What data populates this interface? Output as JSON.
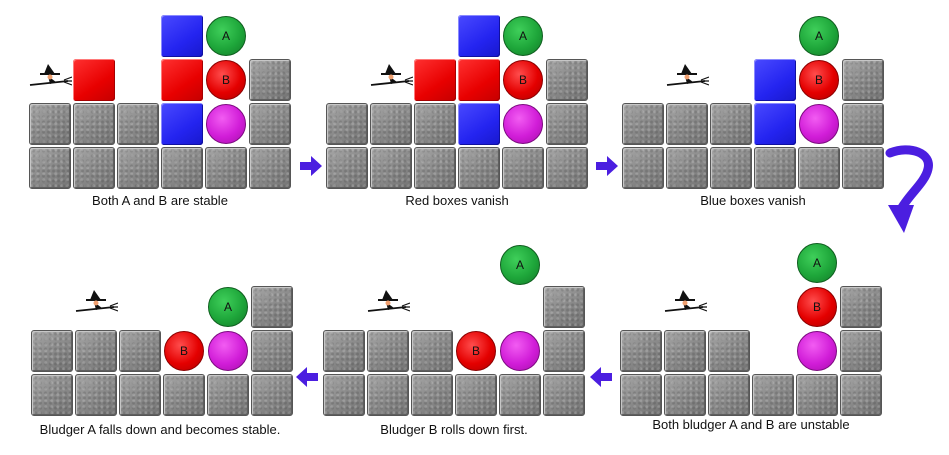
{
  "ball_labels": {
    "a": "A",
    "b": "B"
  },
  "captions": {
    "panel1": "Both A and B are stable",
    "panel2": "Red boxes vanish",
    "panel3": "Blue boxes vanish",
    "panel4": "Bludger A falls down and becomes stable.",
    "panel5": "Bludger B rolls down first.",
    "panel6": "Both bludger A and B are unstable"
  },
  "colors": {
    "stone": "#8d8d8d",
    "red_box": "#e80000",
    "blue_box": "#2424f0",
    "bludger_green": "#1ea63a",
    "bludger_red": "#e40000",
    "bludger_purple": "#d11dd8",
    "arrow": "#4b1ee0"
  },
  "icons": {
    "flow_arrow": "right-arrow-icon",
    "flow_arrow_back": "left-arrow-icon",
    "curved_arrow": "curved-down-arrow-icon",
    "player": "witch-on-broom-icon"
  }
}
